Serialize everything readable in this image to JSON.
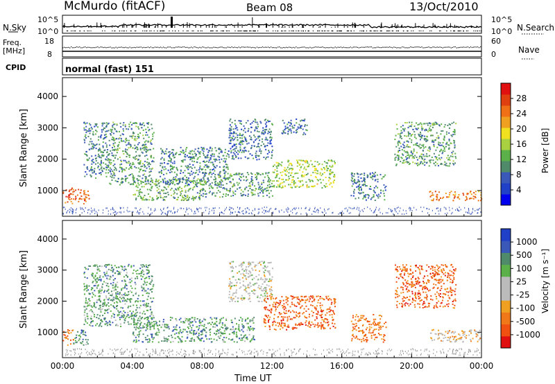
{
  "header": {
    "station": "McMurdo (fitACF)",
    "beam": "Beam 08",
    "date": "13/Oct/2010"
  },
  "strip_panels": {
    "nsky_label": "N.Sky",
    "nsky_ticks": [
      "10^5",
      "10^0"
    ],
    "nsearch_label": "N.Search",
    "nsearch_ticks": [
      "10^5",
      "10^0"
    ],
    "freq_label_top": "Freq.",
    "freq_label_bottom": "[MHz]",
    "freq_ticks": [
      "18",
      "8"
    ],
    "nave_label": "Nave",
    "nave_ticks": [
      "60",
      "0"
    ],
    "cpid_label": "CPID",
    "cpid_value": "normal (fast) 151"
  },
  "colors": {
    "power": [
      "#0000ee",
      "#2040c8",
      "#3a58b8",
      "#4f8a6a",
      "#5bb04a",
      "#a8d040",
      "#f0e020",
      "#f0a020",
      "#f07018",
      "#e04010",
      "#e01010"
    ],
    "velocity": [
      "#e01010",
      "#f05010",
      "#f07818",
      "#f0a020",
      "#bbbbbb",
      "#bbbbbb",
      "#5bb04a",
      "#4f8a6a",
      "#3a58b8",
      "#2040c8"
    ]
  },
  "chart_data": [
    {
      "type": "heatmap",
      "title": "",
      "xlabel": "Time UT",
      "ylabel": "Slant Range [km]",
      "x_ticks": [
        "00:00",
        "04:00",
        "08:00",
        "12:00",
        "16:00",
        "20:00",
        "00:00"
      ],
      "xlim_hours": [
        0,
        24
      ],
      "y_ticks": [
        1000,
        2000,
        3000,
        4000
      ],
      "ylim": [
        180,
        4600
      ],
      "colorbar": {
        "label": "Power [dB]",
        "ticks": [
          "4",
          "8",
          "12",
          "16",
          "20",
          "24",
          "28"
        ],
        "range": [
          0,
          30
        ]
      },
      "regions": [
        {
          "t0": 0.0,
          "t1": 1.5,
          "r0": 600,
          "r1": 1100,
          "level": 0.8
        },
        {
          "t0": 1.2,
          "t1": 2.6,
          "r0": 1400,
          "r1": 3200,
          "level": 0.3
        },
        {
          "t0": 2.6,
          "t1": 5.2,
          "r0": 1200,
          "r1": 3200,
          "level": 0.35
        },
        {
          "t0": 4.0,
          "t1": 8.0,
          "r0": 700,
          "r1": 1400,
          "level": 0.4
        },
        {
          "t0": 5.5,
          "t1": 9.5,
          "r0": 1200,
          "r1": 2400,
          "level": 0.3
        },
        {
          "t0": 8.0,
          "t1": 12.0,
          "r0": 800,
          "r1": 1600,
          "level": 0.35
        },
        {
          "t0": 9.5,
          "t1": 12.0,
          "r0": 2000,
          "r1": 3300,
          "level": 0.25
        },
        {
          "t0": 12.0,
          "t1": 15.6,
          "r0": 1100,
          "r1": 2000,
          "level": 0.5
        },
        {
          "t0": 12.5,
          "t1": 14.0,
          "r0": 2800,
          "r1": 3300,
          "level": 0.25
        },
        {
          "t0": 16.5,
          "t1": 18.5,
          "r0": 700,
          "r1": 1600,
          "level": 0.3
        },
        {
          "t0": 19.0,
          "t1": 22.5,
          "r0": 1800,
          "r1": 3200,
          "level": 0.35
        },
        {
          "t0": 21.0,
          "t1": 24.0,
          "r0": 700,
          "r1": 1000,
          "level": 0.75
        }
      ]
    },
    {
      "type": "heatmap",
      "title": "",
      "xlabel": "Time UT",
      "ylabel": "Slant Range [km]",
      "x_ticks": [
        "00:00",
        "04:00",
        "08:00",
        "12:00",
        "16:00",
        "20:00",
        "00:00"
      ],
      "xlim_hours": [
        0,
        24
      ],
      "y_ticks": [
        1000,
        2000,
        3000,
        4000
      ],
      "ylim": [
        180,
        4600
      ],
      "colorbar": {
        "label": "Velocity [m s⁻¹]",
        "ticks": [
          "1000",
          "500",
          "100",
          "25",
          "-25",
          "-100",
          "-500",
          "-1000"
        ],
        "range": [
          -1000,
          1000
        ]
      },
      "regions": [
        {
          "t0": 0.0,
          "t1": 0.6,
          "r0": 600,
          "r1": 1100,
          "level": 0.25
        },
        {
          "t0": 0.6,
          "t1": 1.5,
          "r0": 600,
          "r1": 1100,
          "level": 0.72
        },
        {
          "t0": 1.2,
          "t1": 5.2,
          "r0": 1200,
          "r1": 3200,
          "level": 0.7
        },
        {
          "t0": 4.0,
          "t1": 11.0,
          "r0": 700,
          "r1": 1500,
          "level": 0.72
        },
        {
          "t0": 9.5,
          "t1": 12.0,
          "r0": 2000,
          "r1": 3300,
          "level": 0.5
        },
        {
          "t0": 11.5,
          "t1": 15.6,
          "r0": 1100,
          "r1": 2200,
          "level": 0.2
        },
        {
          "t0": 16.5,
          "t1": 18.5,
          "r0": 700,
          "r1": 1600,
          "level": 0.25
        },
        {
          "t0": 19.0,
          "t1": 22.5,
          "r0": 1800,
          "r1": 3200,
          "level": 0.2
        },
        {
          "t0": 21.0,
          "t1": 24.0,
          "r0": 700,
          "r1": 1100,
          "level": 0.4
        }
      ]
    }
  ]
}
